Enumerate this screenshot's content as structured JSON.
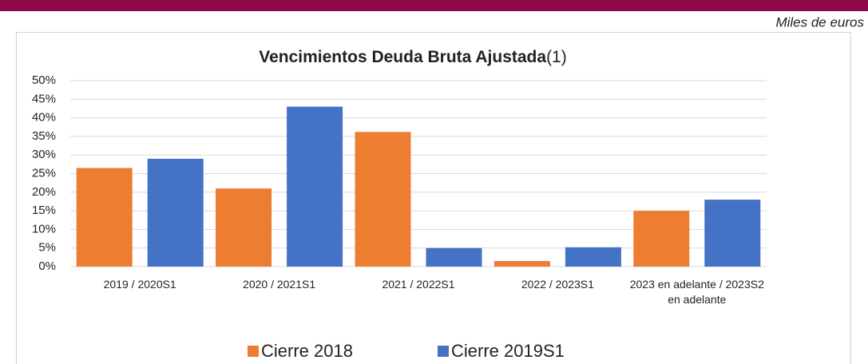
{
  "header": {
    "note": "Miles de euros"
  },
  "chart_data": {
    "type": "bar",
    "title": "Vencimientos Deuda Bruta Ajustada",
    "title_suffix": "(1)",
    "categories": [
      "2019 / 2020S1",
      "2020 / 2021S1",
      "2021 / 2022S1",
      "2022 / 2023S1",
      "2023 en adelante / 2023S2 en adelante"
    ],
    "series": [
      {
        "name": "Cierre 2018",
        "color": "#ed7d31",
        "values": [
          26.5,
          21,
          36.2,
          1.5,
          15
        ]
      },
      {
        "name": "Cierre 2019S1",
        "color": "#4472c4",
        "values": [
          29,
          43,
          5,
          5.2,
          18
        ]
      }
    ],
    "ylim": [
      0,
      50
    ],
    "yticks": [
      {
        "value": 0,
        "label": "0%"
      },
      {
        "value": 5,
        "label": "5%"
      },
      {
        "value": 10,
        "label": "10%"
      },
      {
        "value": 15,
        "label": "15%"
      },
      {
        "value": 20,
        "label": "20%"
      },
      {
        "value": 25,
        "label": "25%"
      },
      {
        "value": 30,
        "label": "30%"
      },
      {
        "value": 35,
        "label": "35%"
      },
      {
        "value": 40,
        "label": "40%"
      },
      {
        "value": 45,
        "label": "45%"
      },
      {
        "value": 50,
        "label": "50%"
      }
    ],
    "grid": true,
    "legend": "bottom"
  }
}
